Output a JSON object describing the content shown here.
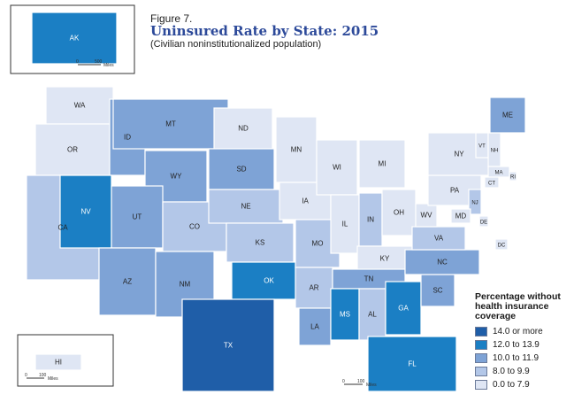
{
  "figure_label": "Figure 7.",
  "title": "Uninsured Rate by State: 2015",
  "subtitle": "(Civilian noninstitutionalized population)",
  "legend": {
    "title": "Percentage without health insurance coverage",
    "bins": [
      {
        "label": "14.0 or more",
        "color": "#1f5ea8"
      },
      {
        "label": "12.0 to 13.9",
        "color": "#1b7fc4"
      },
      {
        "label": "10.0 to 11.9",
        "color": "#7ea3d6"
      },
      {
        "label": "8.0 to 9.9",
        "color": "#b3c7e8"
      },
      {
        "label": "0.0 to 7.9",
        "color": "#dfe6f4"
      }
    ]
  },
  "scale_bar_label": "Miles",
  "scale_bars": {
    "alaska": {
      "values": [
        "0",
        "500"
      ]
    },
    "hawaii": {
      "values": [
        "0",
        "100"
      ]
    },
    "mainland": {
      "values": [
        "0",
        "100"
      ]
    }
  },
  "states": [
    {
      "abbr": "AK",
      "bin": 1
    },
    {
      "abbr": "HI",
      "bin": 4
    },
    {
      "abbr": "WA",
      "bin": 4
    },
    {
      "abbr": "OR",
      "bin": 4
    },
    {
      "abbr": "CA",
      "bin": 3
    },
    {
      "abbr": "ID",
      "bin": 2
    },
    {
      "abbr": "NV",
      "bin": 1
    },
    {
      "abbr": "MT",
      "bin": 2
    },
    {
      "abbr": "WY",
      "bin": 2
    },
    {
      "abbr": "UT",
      "bin": 2
    },
    {
      "abbr": "AZ",
      "bin": 2
    },
    {
      "abbr": "CO",
      "bin": 3
    },
    {
      "abbr": "NM",
      "bin": 2
    },
    {
      "abbr": "ND",
      "bin": 4
    },
    {
      "abbr": "SD",
      "bin": 2
    },
    {
      "abbr": "NE",
      "bin": 3
    },
    {
      "abbr": "KS",
      "bin": 3
    },
    {
      "abbr": "OK",
      "bin": 1
    },
    {
      "abbr": "TX",
      "bin": 0
    },
    {
      "abbr": "MN",
      "bin": 4
    },
    {
      "abbr": "IA",
      "bin": 4
    },
    {
      "abbr": "MO",
      "bin": 3
    },
    {
      "abbr": "AR",
      "bin": 3
    },
    {
      "abbr": "LA",
      "bin": 2
    },
    {
      "abbr": "WI",
      "bin": 4
    },
    {
      "abbr": "IL",
      "bin": 4
    },
    {
      "abbr": "MI",
      "bin": 4
    },
    {
      "abbr": "IN",
      "bin": 3
    },
    {
      "abbr": "OH",
      "bin": 4
    },
    {
      "abbr": "KY",
      "bin": 4
    },
    {
      "abbr": "TN",
      "bin": 2
    },
    {
      "abbr": "MS",
      "bin": 1
    },
    {
      "abbr": "AL",
      "bin": 3
    },
    {
      "abbr": "GA",
      "bin": 1
    },
    {
      "abbr": "FL",
      "bin": 1
    },
    {
      "abbr": "SC",
      "bin": 2
    },
    {
      "abbr": "NC",
      "bin": 2
    },
    {
      "abbr": "VA",
      "bin": 3
    },
    {
      "abbr": "WV",
      "bin": 4
    },
    {
      "abbr": "PA",
      "bin": 4
    },
    {
      "abbr": "NY",
      "bin": 4
    },
    {
      "abbr": "VT",
      "bin": 4
    },
    {
      "abbr": "NH",
      "bin": 4
    },
    {
      "abbr": "ME",
      "bin": 2
    },
    {
      "abbr": "MA",
      "bin": 4
    },
    {
      "abbr": "RI",
      "bin": 4
    },
    {
      "abbr": "CT",
      "bin": 4
    },
    {
      "abbr": "NJ",
      "bin": 3
    },
    {
      "abbr": "DE",
      "bin": 4
    },
    {
      "abbr": "MD",
      "bin": 4
    },
    {
      "abbr": "DC",
      "bin": 4
    }
  ]
}
